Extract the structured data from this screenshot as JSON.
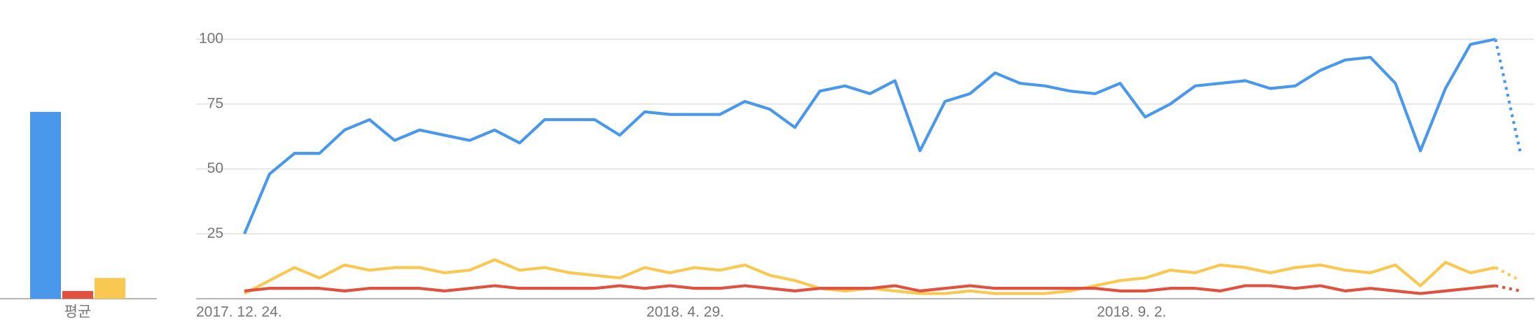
{
  "chart_data": [
    {
      "type": "bar",
      "categories": [
        "평균"
      ],
      "series": [
        {
          "color": "#4a98eb",
          "values": [
            72
          ]
        },
        {
          "color": "#e0513f",
          "values": [
            3
          ]
        },
        {
          "color": "#f8c850",
          "values": [
            8
          ]
        }
      ],
      "ylim": [
        0,
        100
      ]
    },
    {
      "type": "line",
      "categories": [
        "2017. 12. 24.",
        null,
        null,
        null,
        null,
        null,
        null,
        null,
        null,
        null,
        null,
        null,
        null,
        null,
        null,
        null,
        null,
        null,
        "2018. 4. 29.",
        null,
        null,
        null,
        null,
        null,
        null,
        null,
        null,
        null,
        null,
        null,
        null,
        null,
        null,
        null,
        null,
        null,
        "2018. 9. 2.",
        null,
        null,
        null,
        null,
        null,
        null,
        null,
        null,
        null,
        null,
        null,
        null,
        null,
        null,
        null
      ],
      "series": [
        {
          "color": "#4a98eb",
          "values": [
            25,
            48,
            56,
            56,
            65,
            69,
            61,
            65,
            63,
            61,
            65,
            60,
            69,
            69,
            69,
            63,
            72,
            71,
            71,
            71,
            76,
            73,
            66,
            80,
            82,
            79,
            84,
            57,
            76,
            79,
            87,
            83,
            82,
            80,
            79,
            83,
            70,
            75,
            82,
            83,
            84,
            81,
            82,
            88,
            92,
            93,
            83,
            57,
            81,
            98,
            100,
            56
          ]
        },
        {
          "color": "#f8c850",
          "values": [
            2,
            7,
            12,
            8,
            13,
            11,
            12,
            12,
            10,
            11,
            15,
            11,
            12,
            10,
            9,
            8,
            12,
            10,
            12,
            11,
            13,
            9,
            7,
            4,
            3,
            4,
            3,
            2,
            2,
            3,
            2,
            2,
            2,
            3,
            5,
            7,
            8,
            11,
            10,
            13,
            12,
            10,
            12,
            13,
            11,
            10,
            13,
            5,
            14,
            10,
            12,
            7
          ]
        },
        {
          "color": "#e0513f",
          "values": [
            3,
            4,
            4,
            4,
            3,
            4,
            4,
            4,
            3,
            4,
            5,
            4,
            4,
            4,
            4,
            5,
            4,
            5,
            4,
            4,
            5,
            4,
            3,
            4,
            4,
            4,
            5,
            3,
            4,
            5,
            4,
            4,
            4,
            4,
            4,
            3,
            3,
            4,
            4,
            3,
            5,
            5,
            4,
            5,
            3,
            4,
            3,
            2,
            3,
            4,
            5,
            3
          ]
        }
      ],
      "last_point_partial": true,
      "ylim": [
        0,
        100
      ],
      "yticks": [
        25,
        50,
        75,
        100
      ],
      "grid": true
    }
  ]
}
